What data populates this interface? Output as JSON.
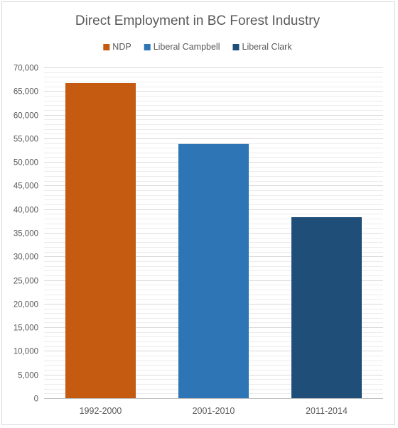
{
  "chart_data": {
    "type": "bar",
    "title": "Direct Employment in BC Forest Industry",
    "categories": [
      "1992-2000",
      "2001-2010",
      "2011-2014"
    ],
    "series": [
      {
        "name": "NDP",
        "color": "#c55a11",
        "values": [
          66700,
          null,
          null
        ]
      },
      {
        "name": "Liberal Campbell",
        "color": "#2e75b6",
        "values": [
          null,
          53800,
          null
        ]
      },
      {
        "name": "Liberal Clark",
        "color": "#1f4e79",
        "values": [
          null,
          null,
          38300
        ]
      }
    ],
    "ylim": [
      0,
      70000
    ],
    "yticks": [
      0,
      5000,
      10000,
      15000,
      20000,
      25000,
      30000,
      35000,
      40000,
      45000,
      50000,
      55000,
      60000,
      65000,
      70000
    ],
    "ytick_labels": [
      "0",
      "5,000",
      "10,000",
      "15,000",
      "20,000",
      "25,000",
      "30,000",
      "35,000",
      "40,000",
      "45,000",
      "50,000",
      "55,000",
      "60,000",
      "65,000",
      "70,000"
    ],
    "minor_step": 1000,
    "grid": true,
    "legend_position": "top",
    "gridline_color": "#d9d9d9",
    "axis_color": "#bfbfbf"
  }
}
